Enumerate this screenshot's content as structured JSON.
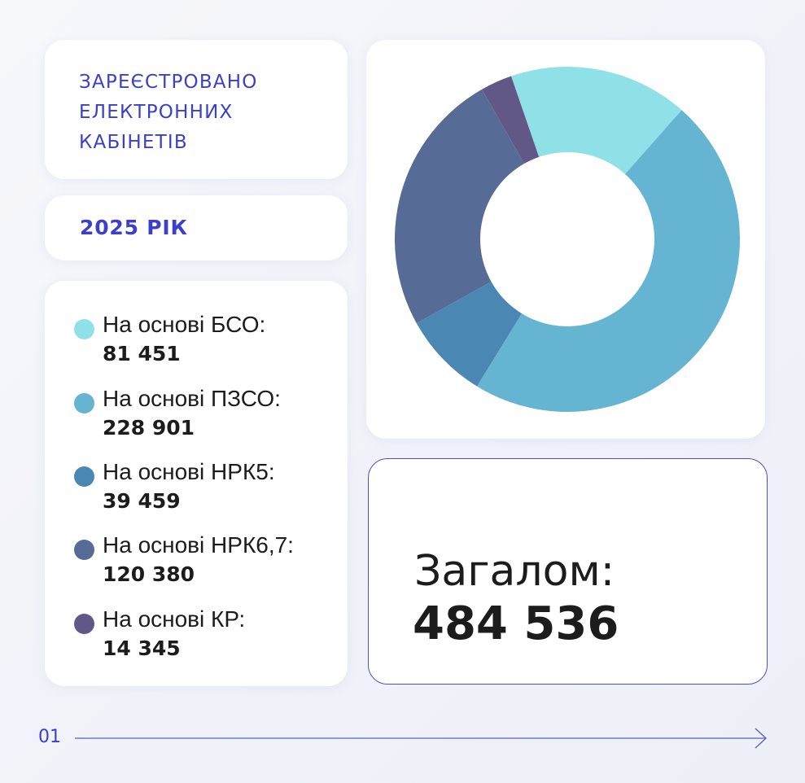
{
  "title": "ЗАРЕЄСТРОВАНО\nЕЛЕКТРОННИХ\nКАБІНЕТІВ",
  "year": "2025 РІК",
  "legend": {
    "items": [
      {
        "label": "На основі БСО:",
        "value": "81 451",
        "color": "#8fe1e7"
      },
      {
        "label": "На основі ПЗСО:",
        "value": "228 901",
        "color": "#65b4d2"
      },
      {
        "label": "На основі НРК5:",
        "value": "39 459",
        "color": "#4a87b2"
      },
      {
        "label": "На основі НРК6,7:",
        "value": "120 380",
        "color": "#566b96"
      },
      {
        "label": "На основі КР:",
        "value": "14 345",
        "color": "#625888"
      }
    ]
  },
  "total": {
    "label": "Загалом:",
    "value": "484 536"
  },
  "page_number": "01",
  "colors": {
    "accent": "#3a40c9",
    "text": "#1c1c1c",
    "card": "#ffffff"
  },
  "chart_data": {
    "type": "pie",
    "variant": "donut",
    "title": "ЗАРЕЄСТРОВАНО ЕЛЕКТРОННИХ КАБІНЕТІВ",
    "subtitle": "2025 РІК",
    "categories": [
      "На основі БСО",
      "На основі ПЗСО",
      "На основі НРК5",
      "На основі НРК6,7",
      "На основі КР"
    ],
    "values": [
      81451,
      228901,
      39459,
      120380,
      14345
    ],
    "colors": [
      "#8fe1e7",
      "#65b4d2",
      "#4a87b2",
      "#566b96",
      "#625888"
    ],
    "total": 484536,
    "legend": "left"
  }
}
